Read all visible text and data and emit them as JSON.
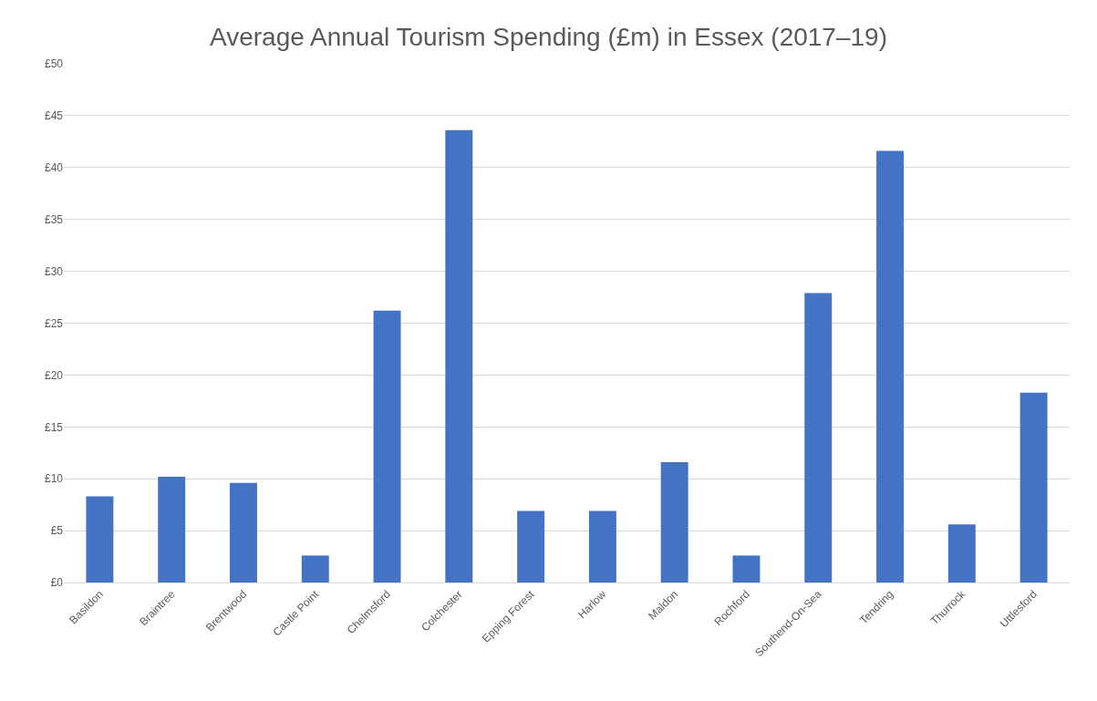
{
  "chart_data": {
    "type": "bar",
    "title": "Average Annual Tourism Spending (£m) in Essex (2017–19)",
    "categories": [
      "Basildon",
      "Braintree",
      "Brentwood",
      "Castle Point",
      "Chelmsford",
      "Colchester",
      "Epping Forest",
      "Harlow",
      "Maldon",
      "Rochford",
      "Southend-On-Sea",
      "Tendring",
      "Thurrock",
      "Uttlesford"
    ],
    "values": [
      8.3,
      10.2,
      9.6,
      2.6,
      26.2,
      43.6,
      6.9,
      6.9,
      11.6,
      2.6,
      27.9,
      41.6,
      5.6,
      18.3
    ],
    "color": "#4472c4",
    "ylim": [
      0,
      50
    ],
    "yticks": [
      {
        "value": 0,
        "label": "£0"
      },
      {
        "value": 5,
        "label": "£5"
      },
      {
        "value": 10,
        "label": "£10"
      },
      {
        "value": 15,
        "label": "£15"
      },
      {
        "value": 20,
        "label": "£20"
      },
      {
        "value": 25,
        "label": "£25"
      },
      {
        "value": 30,
        "label": "£30"
      },
      {
        "value": 35,
        "label": "£35"
      },
      {
        "value": 40,
        "label": "£40"
      },
      {
        "value": 45,
        "label": "£45"
      },
      {
        "value": 50,
        "label": "£50"
      }
    ],
    "grid": "y"
  }
}
